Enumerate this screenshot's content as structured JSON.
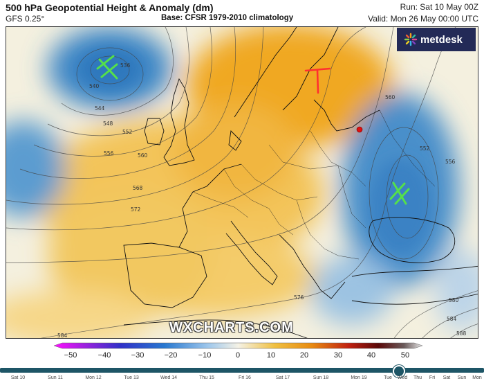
{
  "header": {
    "title": "500 hPa Geopotential Height & Anomaly (dm)",
    "model": "GFS 0.25°",
    "base": "Base: CFSR 1979-2010 climatology",
    "run": "Run: Sat 10 May 00Z",
    "valid": "Valid: Mon 26 May 00:00 UTC"
  },
  "brand": {
    "logo_text": "metdesk",
    "watermark": "WXCHARTS.COM"
  },
  "contours": {
    "labels": [
      "536",
      "540",
      "544",
      "548",
      "552",
      "556",
      "560",
      "568",
      "572",
      "576",
      "584",
      "560",
      "552",
      "556",
      "580",
      "584",
      "588"
    ]
  },
  "colorbar": {
    "ticks": [
      "−50",
      "−40",
      "−30",
      "−20",
      "−10",
      "0",
      "10",
      "20",
      "30",
      "40",
      "50"
    ],
    "min": -50,
    "max": 50
  },
  "timeline": {
    "days": [
      "Sat 10",
      "Sun 11",
      "Mon 12",
      "Tue 13",
      "Wed 14",
      "Thu 15",
      "Fri 16",
      "Sat 17",
      "Sun 18",
      "Mon 19",
      "Tue",
      "Wed",
      "Thu",
      "Fri",
      "Sat",
      "Sun",
      "Mon"
    ]
  },
  "colors": {
    "negative_anomaly": "#3d86c6",
    "positive_anomaly": "#f0b030",
    "neutral": "#f4f0df",
    "annotation_green": "#55e04a",
    "annotation_red": "#ff3030",
    "brand_bg": "#232a57",
    "timeline": "#1d5566"
  }
}
